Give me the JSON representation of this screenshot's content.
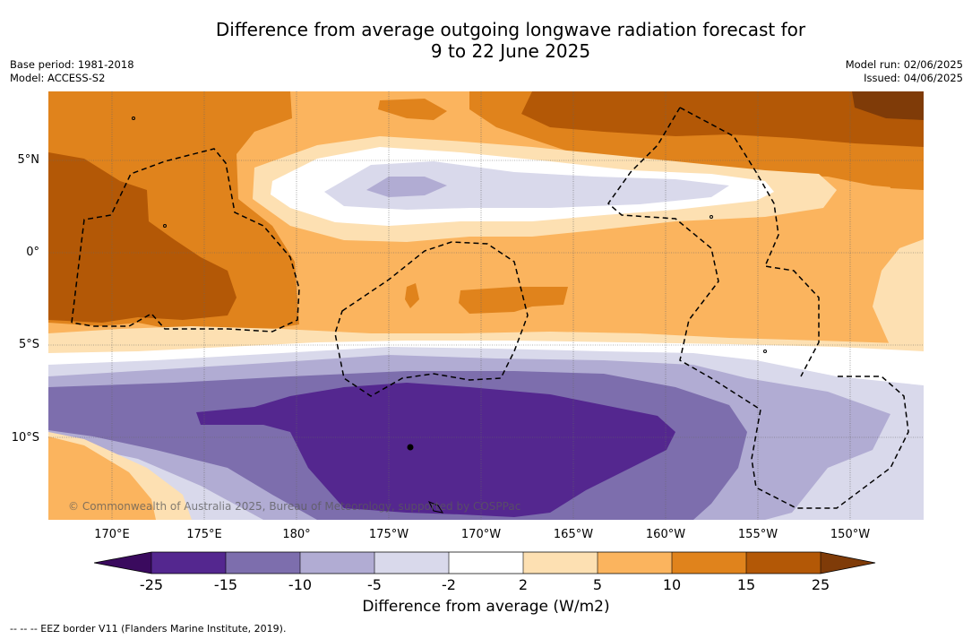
{
  "title_line1": "Difference from average outgoing longwave radiation forecast for",
  "title_line2": "9 to 22 June 2025",
  "base_period": "Base period: 1981-2018",
  "model": "Model: ACCESS-S2",
  "model_run": "Model run: 02/06/2025",
  "issued": "Issued: 04/06/2025",
  "lat_labels": [
    "5°N",
    "0°",
    "5°S",
    "10°S"
  ],
  "lon_labels": [
    "170°E",
    "175°E",
    "180°",
    "175°W",
    "170°W",
    "165°W",
    "160°W",
    "155°W",
    "150°W"
  ],
  "copyright": "© Commonwealth of Australia 2025, Bureau of Meteorology, supported by COSPPac",
  "colorbar": {
    "ticks": [
      "-25",
      "-15",
      "-10",
      "-5",
      "-2",
      "2",
      "5",
      "10",
      "15",
      "25"
    ],
    "label": "Difference from average (W/m2)",
    "colors": {
      "lt_-25": "#3a0a5e",
      "-25_-15": "#54278f",
      "-15_-10": "#7d6ead",
      "-10_-5": "#b1acd3",
      "-5_-2": "#d9d9eb",
      "-2_2": "#ffffff",
      "2_5": "#fde0b2",
      "5_10": "#fbb45e",
      "10_15": "#e0831c",
      "15_25": "#b35806",
      "gt_25": "#7f3b08"
    }
  },
  "legend_eez": "-- -- -- EEZ border V11 (Flanders Marine Institute, 2019)."
}
